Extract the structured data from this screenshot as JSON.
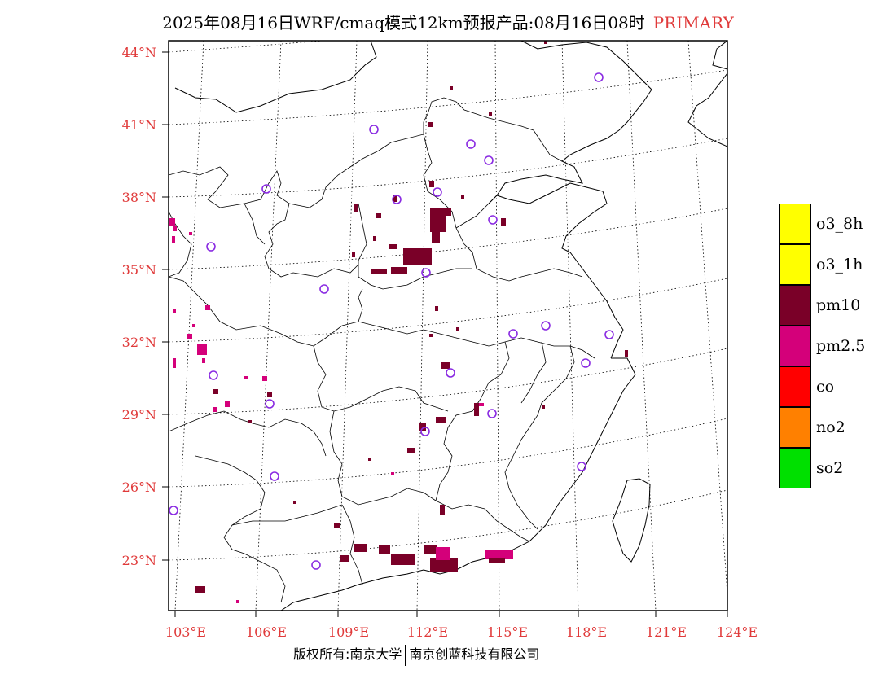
{
  "title": {
    "main": "2025年08月16日WRF/cmaq模式12km预报产品:08月16日08时",
    "tag": "PRIMARY"
  },
  "map": {
    "lat_labels": [
      "44°N",
      "41°N",
      "38°N",
      "35°N",
      "32°N",
      "29°N",
      "26°N",
      "23°N"
    ],
    "lon_labels": [
      "103°E",
      "106°E",
      "109°E",
      "112°E",
      "115°E",
      "118°E",
      "121°E",
      "124°E"
    ],
    "colors": {
      "pm10": "#7a0028",
      "pm25": "#d4007a",
      "station": "#8a2be2",
      "tick_text": "#e03a3a"
    }
  },
  "legend": [
    {
      "label": "o3_8h",
      "color": "#ffff00"
    },
    {
      "label": "o3_1h",
      "color": "#ffff00"
    },
    {
      "label": "pm10",
      "color": "#7a0028"
    },
    {
      "label": "pm2.5",
      "color": "#d4007a"
    },
    {
      "label": "co",
      "color": "#ff0000"
    },
    {
      "label": "no2",
      "color": "#ff8000"
    },
    {
      "label": "so2",
      "color": "#00e000"
    }
  ],
  "footer": {
    "left": "版权所有:南京大学",
    "right": "南京创蓝科技有限公司"
  }
}
